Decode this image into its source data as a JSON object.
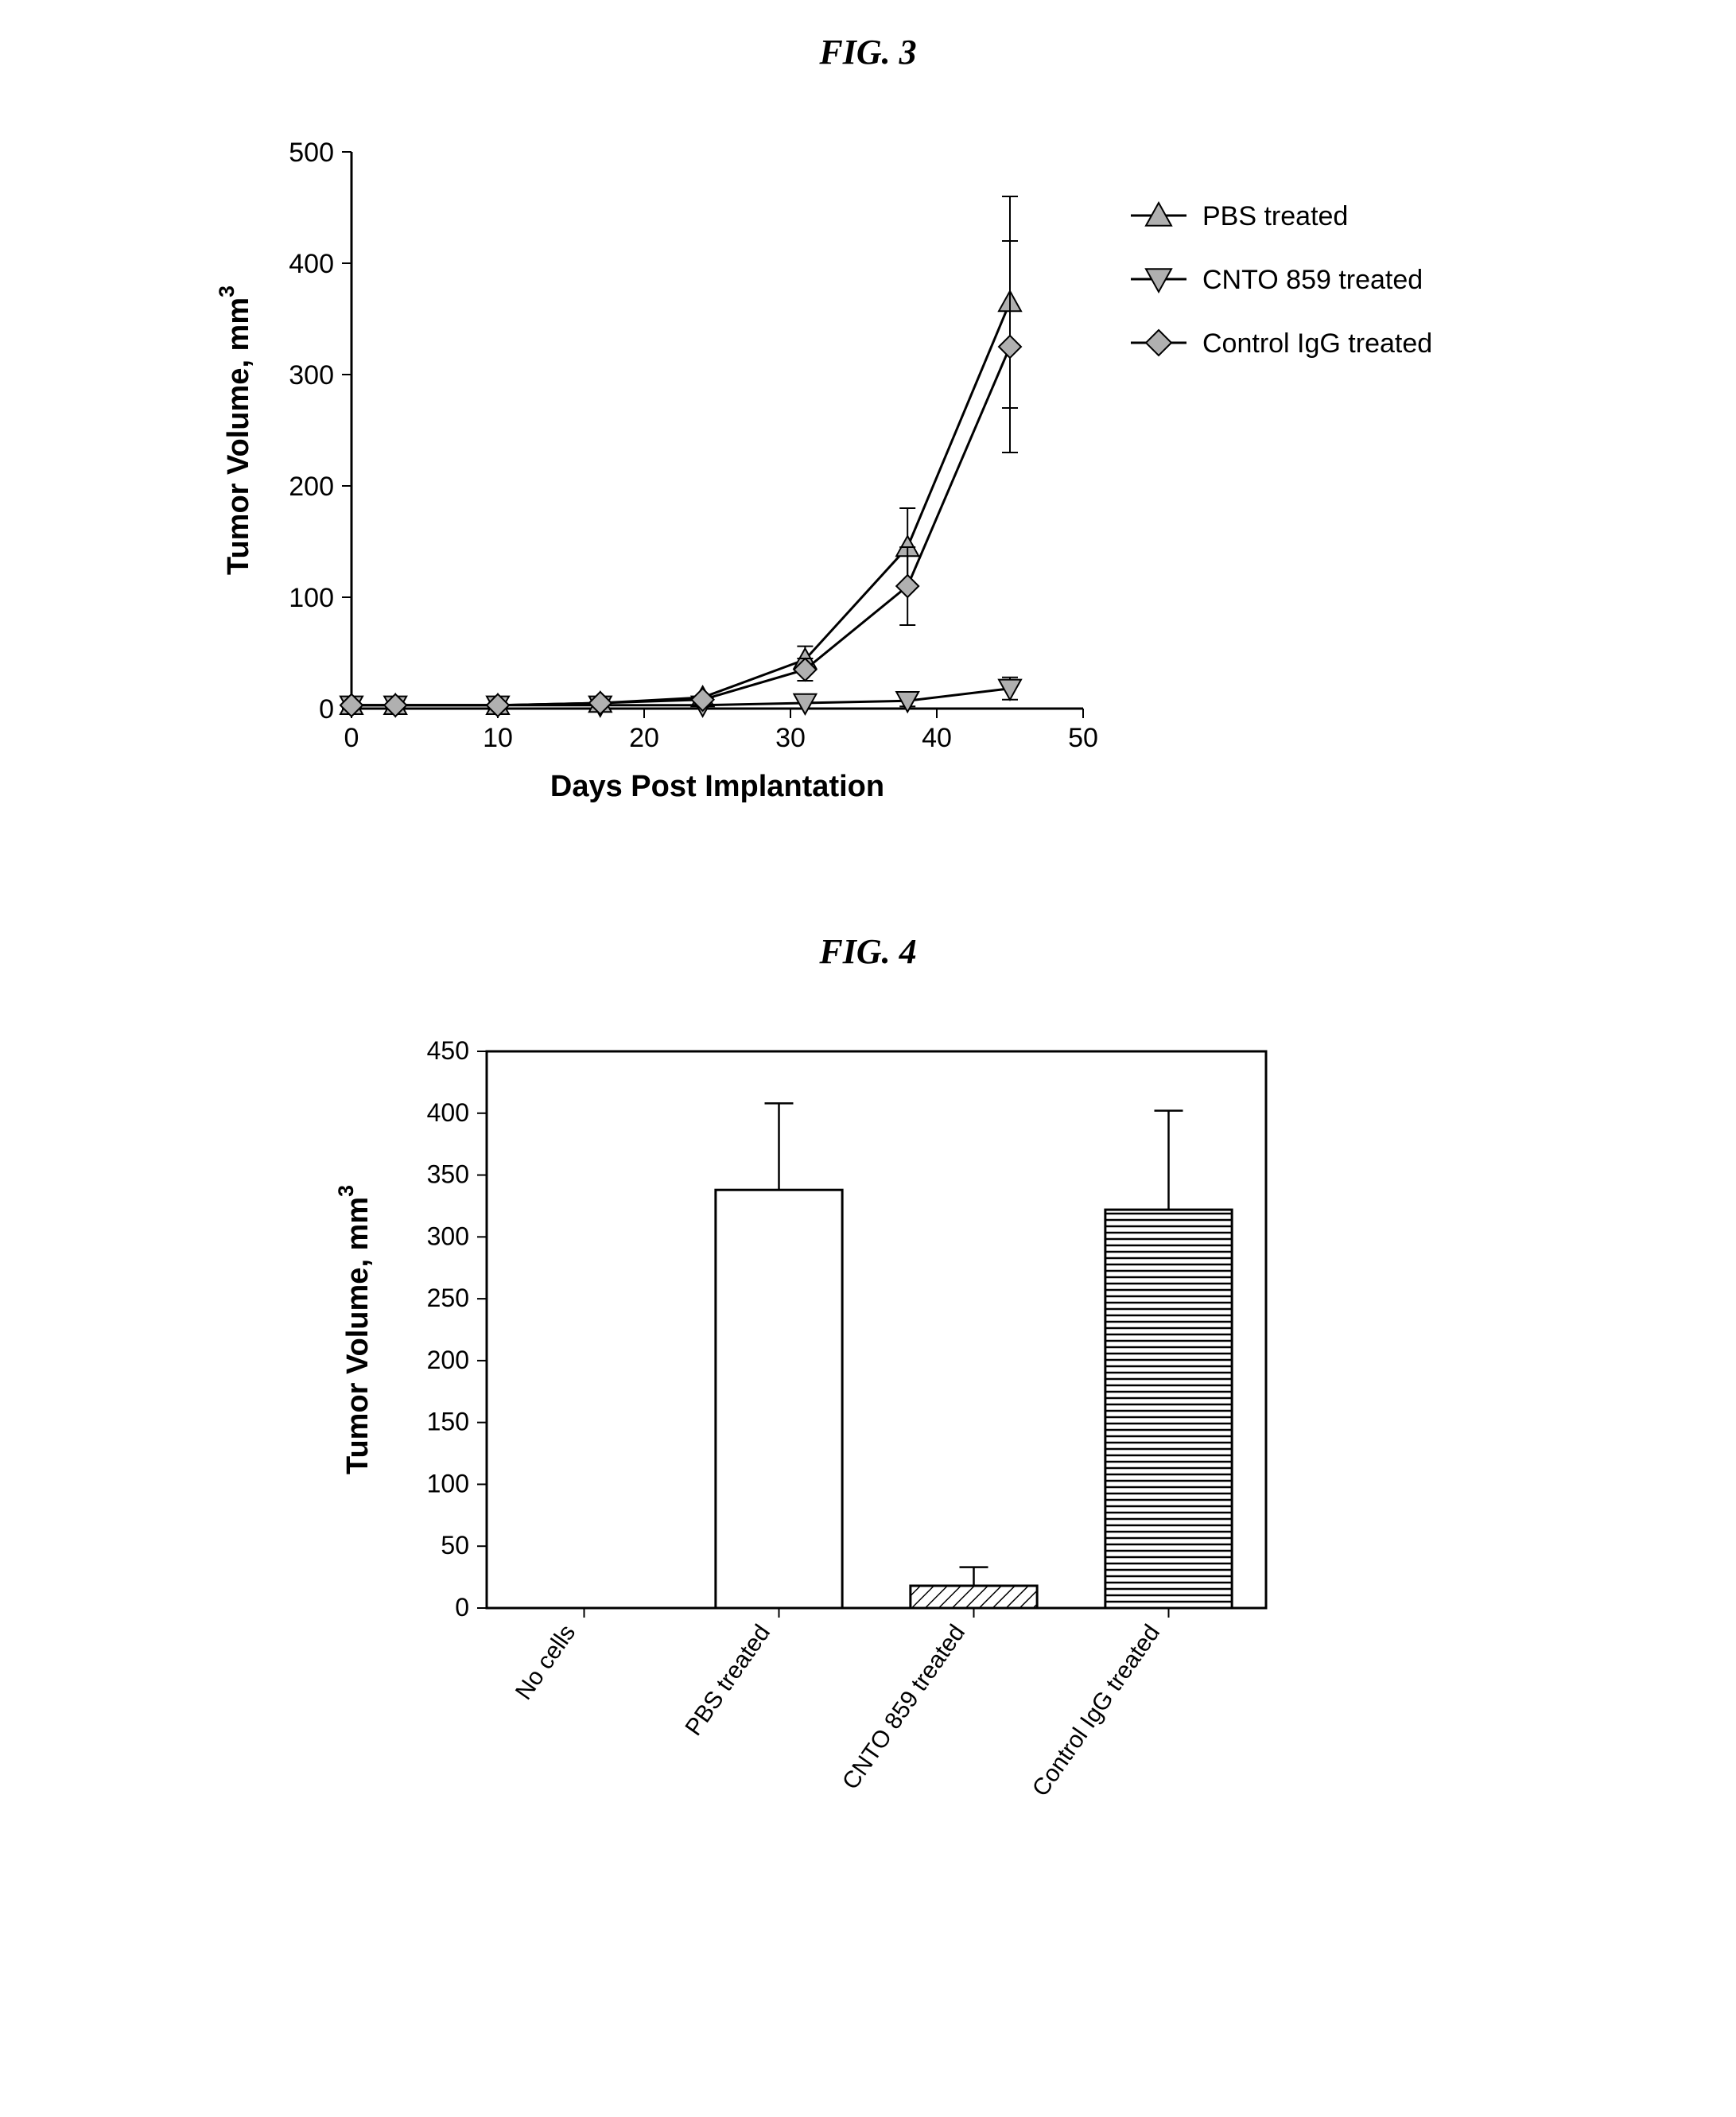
{
  "figure3": {
    "title": "FIG. 3",
    "type": "line",
    "xlabel": "Days Post Implantation",
    "ylabel": "Tumor Volume, mm",
    "ylabel_sup": "3",
    "xlim": [
      0,
      50
    ],
    "ylim": [
      0,
      500
    ],
    "xtick_step": 10,
    "ytick_step": 100,
    "xticks": [
      0,
      10,
      20,
      30,
      40,
      50
    ],
    "yticks": [
      0,
      100,
      200,
      300,
      400,
      500
    ],
    "axis_fontsize": 38,
    "tick_fontsize": 34,
    "axis_color": "#000000",
    "line_color": "#000000",
    "marker_fill": "#b0b0b0",
    "marker_stroke": "#000000",
    "background": "#ffffff",
    "legend": [
      {
        "label": "PBS treated",
        "marker": "triangle-up"
      },
      {
        "label": "CNTO 859 treated",
        "marker": "triangle-down"
      },
      {
        "label": "Control IgG treated",
        "marker": "diamond"
      }
    ],
    "series": [
      {
        "name": "PBS treated",
        "marker": "triangle-up",
        "x": [
          0,
          3,
          10,
          17,
          24,
          31,
          38,
          45
        ],
        "y": [
          3,
          3,
          3,
          5,
          10,
          44,
          145,
          365
        ],
        "err": [
          0,
          0,
          0,
          0,
          0,
          12,
          35,
          95
        ]
      },
      {
        "name": "CNTO 859 treated",
        "marker": "triangle-down",
        "x": [
          0,
          3,
          10,
          17,
          24,
          31,
          38,
          45
        ],
        "y": [
          3,
          3,
          3,
          3,
          3,
          5,
          7,
          18
        ],
        "err": [
          0,
          0,
          0,
          0,
          0,
          5,
          5,
          10
        ]
      },
      {
        "name": "Control IgG treated",
        "marker": "diamond",
        "x": [
          0,
          3,
          10,
          17,
          24,
          31,
          38,
          45
        ],
        "y": [
          3,
          3,
          3,
          5,
          8,
          35,
          110,
          325
        ],
        "err": [
          0,
          0,
          0,
          0,
          0,
          10,
          35,
          95
        ]
      }
    ]
  },
  "figure4": {
    "title": "FIG. 4",
    "type": "bar",
    "ylabel": "Tumor Volume, mm",
    "ylabel_sup": "3",
    "ylim": [
      0,
      450
    ],
    "ytick_step": 50,
    "yticks": [
      0,
      50,
      100,
      150,
      200,
      250,
      300,
      350,
      400,
      450
    ],
    "axis_fontsize": 38,
    "tick_fontsize": 32,
    "xlabel_fontsize": 30,
    "axis_color": "#000000",
    "background": "#ffffff",
    "bar_border": "#000000",
    "categories": [
      "No cells",
      "PBS treated",
      "CNTO 859 treated",
      "Control IgG treated"
    ],
    "values": [
      0,
      338,
      18,
      322
    ],
    "errors": [
      0,
      70,
      15,
      80
    ],
    "fills": [
      "none",
      "white",
      "hatch-diag",
      "hatch-horiz"
    ]
  }
}
